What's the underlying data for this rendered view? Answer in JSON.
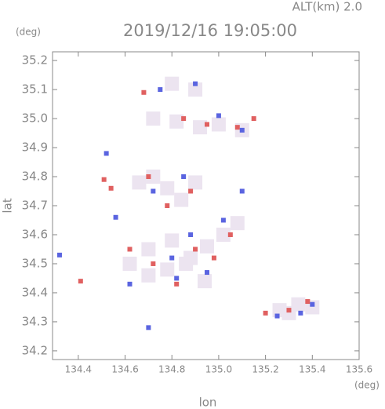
{
  "chart_data": {
    "type": "scatter",
    "header": "ALT(km) 2.0",
    "title": "2019/12/16 19:05:00",
    "y_unit": "(deg)",
    "x_unit": "(deg)",
    "ylabel": "lat",
    "xlabel": "lon",
    "xlim": [
      134.29,
      135.6
    ],
    "ylim": [
      34.17,
      35.23
    ],
    "xticks": [
      134.4,
      134.6,
      134.8,
      {
        "value": 135.0,
        "label": "135.0"
      },
      135.2,
      135.4,
      135.6
    ],
    "yticks": [
      34.2,
      34.3,
      34.4,
      34.5,
      34.6,
      34.7,
      34.8,
      34.9,
      {
        "value": 35.0,
        "label": "35.0"
      },
      35.1,
      35.2
    ],
    "series": [
      {
        "color": "#ece4f0",
        "x": [
          134.66,
          134.72,
          134.78,
          134.84,
          134.9,
          134.7,
          134.8,
          134.88,
          134.95,
          135.02,
          135.08,
          134.62,
          134.7,
          134.78,
          134.86,
          134.94,
          135.3,
          135.34,
          135.26,
          135.4,
          134.8,
          134.9,
          135.0,
          135.1,
          134.72,
          134.82,
          134.92
        ],
        "values": [
          34.78,
          34.8,
          34.76,
          34.72,
          34.78,
          34.55,
          34.58,
          34.52,
          34.56,
          34.6,
          34.64,
          34.5,
          34.46,
          34.48,
          34.5,
          34.44,
          34.33,
          34.36,
          34.34,
          34.35,
          35.12,
          35.1,
          34.98,
          34.96,
          35.0,
          34.99,
          34.97
        ]
      },
      {
        "color": "#e06060",
        "x": [
          134.41,
          134.51,
          134.54,
          134.68,
          134.82,
          134.78,
          134.9,
          134.98,
          135.05,
          135.15,
          135.3,
          135.38,
          134.7,
          134.88,
          134.95,
          135.08,
          134.72,
          134.62,
          135.2,
          134.85
        ],
        "values": [
          34.44,
          34.79,
          34.76,
          35.09,
          34.43,
          34.7,
          34.55,
          34.52,
          34.6,
          35.0,
          34.34,
          34.37,
          34.8,
          34.75,
          34.98,
          34.97,
          34.5,
          34.55,
          34.33,
          35.0
        ]
      },
      {
        "color": "#5a64e0",
        "x": [
          134.32,
          134.52,
          134.56,
          134.7,
          134.62,
          134.8,
          134.88,
          134.95,
          135.02,
          135.1,
          135.35,
          135.4,
          134.72,
          134.85,
          134.9,
          135.0,
          135.1,
          134.75,
          135.25,
          134.82
        ],
        "values": [
          34.53,
          34.88,
          34.66,
          34.28,
          34.43,
          34.52,
          34.6,
          34.47,
          34.65,
          34.75,
          34.33,
          34.36,
          34.75,
          34.8,
          35.12,
          35.01,
          34.96,
          35.1,
          34.32,
          34.45
        ]
      }
    ]
  }
}
